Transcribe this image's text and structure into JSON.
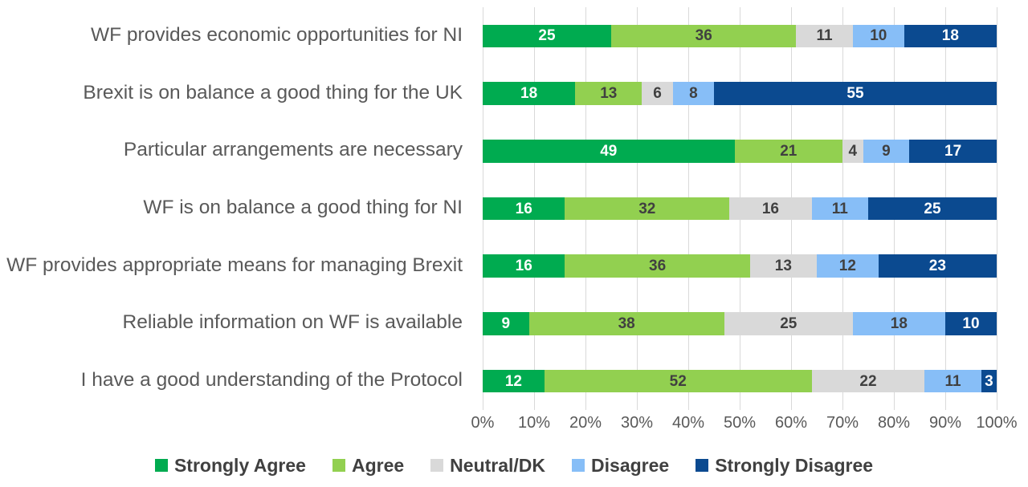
{
  "chart_data": {
    "type": "bar",
    "orientation": "horizontal",
    "stacked": true,
    "stack_total": 100,
    "unit": "%",
    "title": "",
    "categories": [
      "WF provides economic opportunities for NI",
      "Brexit is on balance a good thing for the UK",
      "Particular arrangements are necessary",
      "WF is on balance a good thing for NI",
      "WF provides appropriate means for managing Brexit",
      "Reliable information on WF is available",
      "I have a good understanding of the Protocol"
    ],
    "series": [
      {
        "name": "Strongly Agree",
        "color": "#00AB50",
        "label_color": "#FFFFFF",
        "values": [
          25,
          18,
          49,
          16,
          16,
          9,
          12
        ]
      },
      {
        "name": "Agree",
        "color": "#92D050",
        "label_color": "#404040",
        "values": [
          36,
          13,
          21,
          32,
          36,
          38,
          52
        ]
      },
      {
        "name": "Neutral/DK",
        "color": "#D9D9D9",
        "label_color": "#404040",
        "values": [
          11,
          6,
          4,
          16,
          13,
          25,
          22
        ]
      },
      {
        "name": "Disagree",
        "color": "#87BEF7",
        "label_color": "#404040",
        "values": [
          10,
          8,
          9,
          11,
          12,
          18,
          11
        ]
      },
      {
        "name": "Strongly Disagree",
        "color": "#0B4A90",
        "label_color": "#FFFFFF",
        "values": [
          18,
          55,
          17,
          25,
          23,
          10,
          3
        ]
      }
    ],
    "x_axis": {
      "min": 0,
      "max": 100,
      "tick_labels": [
        "0%",
        "10%",
        "20%",
        "30%",
        "40%",
        "50%",
        "60%",
        "70%",
        "80%",
        "90%",
        "100%"
      ]
    },
    "grid": true,
    "legend_position": "bottom"
  },
  "styles": {
    "background": "#FFFFFF",
    "grid_color": "#D9D9D9",
    "category_text_color": "#595959",
    "axis_text_color": "#595959",
    "legend_text_color": "#404040"
  }
}
